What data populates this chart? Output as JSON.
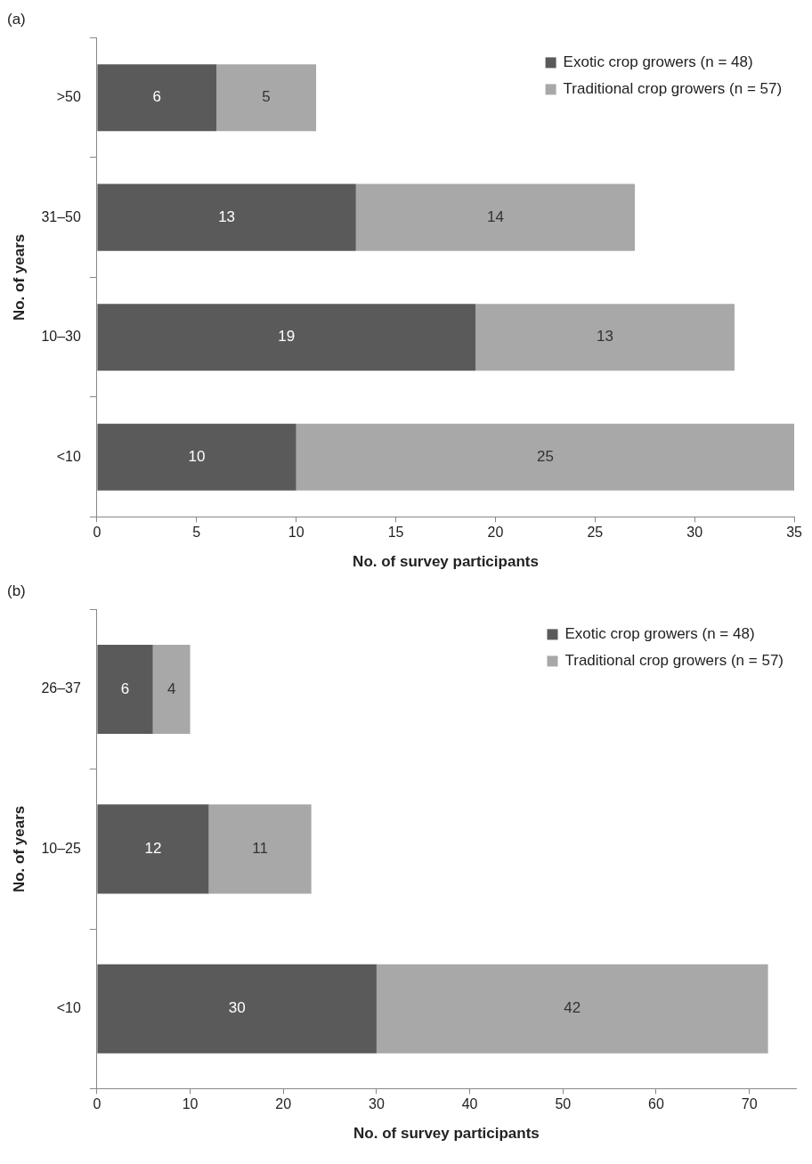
{
  "chart_data": [
    {
      "type": "bar",
      "title": "(a)",
      "orientation": "horizontal",
      "stacked": true,
      "categories": [
        ">50",
        "31–50",
        "10–30",
        "<10"
      ],
      "series": [
        {
          "name": "Exotic crop growers (n = 48)",
          "color": "#5a5a5a",
          "values": [
            6,
            13,
            19,
            10
          ]
        },
        {
          "name": "Traditional crop growers (n = 57)",
          "color": "#a8a8a8",
          "values": [
            5,
            14,
            13,
            25
          ]
        }
      ],
      "xlim": [
        0,
        35
      ],
      "xticks": [
        0,
        5,
        10,
        15,
        20,
        25,
        30,
        35
      ],
      "xlabel": "No. of survey participants",
      "ylabel": "No. of years",
      "legend": "top right",
      "data_labels": true,
      "grid": false
    },
    {
      "type": "bar",
      "title": "(b)",
      "orientation": "horizontal",
      "stacked": true,
      "categories": [
        "26–37",
        "10–25",
        "<10"
      ],
      "series": [
        {
          "name": "Exotic crop growers (n = 48)",
          "color": "#5a5a5a",
          "values": [
            6,
            12,
            30
          ]
        },
        {
          "name": "Traditional crop growers (n = 57)",
          "color": "#a8a8a8",
          "values": [
            4,
            11,
            42
          ]
        }
      ],
      "xlim": [
        0,
        75
      ],
      "xticks": [
        0,
        10,
        20,
        30,
        40,
        50,
        60,
        70
      ],
      "xlabel": "No. of survey participants",
      "ylabel": "No. of years",
      "legend": "top right",
      "data_labels": true,
      "grid": false
    }
  ]
}
